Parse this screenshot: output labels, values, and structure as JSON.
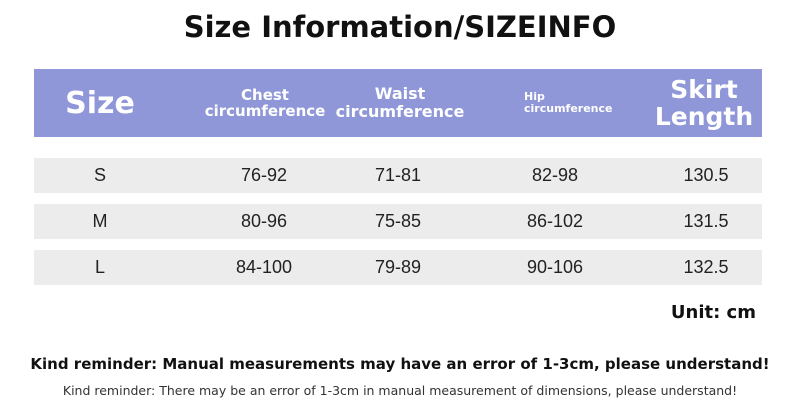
{
  "title": "Size Information/SIZEINFO",
  "table": {
    "header": [
      "Size",
      "Chest circumference",
      "Waist circumference",
      "Hip circumference",
      "Skirt Length"
    ],
    "rows": [
      [
        "S",
        "76-92",
        "71-81",
        "82-98",
        "130.5"
      ],
      [
        "M",
        "80-96",
        "75-85",
        "86-102",
        "131.5"
      ],
      [
        "L",
        "84-100",
        "79-89",
        "90-106",
        "132.5"
      ]
    ]
  },
  "unit": "Unit: cm",
  "reminder_bold": "Kind reminder: Manual measurements may have an error of 1-3cm, please understand!",
  "reminder": "Kind reminder: There may be an error of 1-3cm in manual measurement of dimensions, please understand!"
}
